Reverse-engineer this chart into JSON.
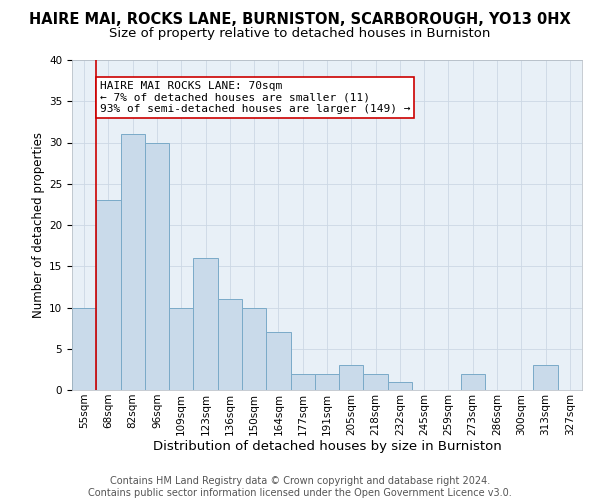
{
  "title": "HAIRE MAI, ROCKS LANE, BURNISTON, SCARBOROUGH, YO13 0HX",
  "subtitle": "Size of property relative to detached houses in Burniston",
  "xlabel": "Distribution of detached houses by size in Burniston",
  "ylabel": "Number of detached properties",
  "bar_values": [
    10,
    23,
    31,
    30,
    10,
    16,
    11,
    10,
    7,
    2,
    2,
    3,
    2,
    1,
    0,
    0,
    2,
    0,
    0,
    3,
    0
  ],
  "categories": [
    "55sqm",
    "68sqm",
    "82sqm",
    "96sqm",
    "109sqm",
    "123sqm",
    "136sqm",
    "150sqm",
    "164sqm",
    "177sqm",
    "191sqm",
    "205sqm",
    "218sqm",
    "232sqm",
    "245sqm",
    "259sqm",
    "273sqm",
    "286sqm",
    "300sqm",
    "313sqm",
    "327sqm"
  ],
  "bar_color": "#c9daea",
  "bar_edge_color": "#7aaac8",
  "ylim": [
    0,
    40
  ],
  "yticks": [
    0,
    5,
    10,
    15,
    20,
    25,
    30,
    35,
    40
  ],
  "vline_color": "#cc0000",
  "vline_position": 1,
  "annotation_text": "HAIRE MAI ROCKS LANE: 70sqm\n← 7% of detached houses are smaller (11)\n93% of semi-detached houses are larger (149) →",
  "annotation_box_color": "#ffffff",
  "annotation_box_edgecolor": "#cc0000",
  "footer_line1": "Contains HM Land Registry data © Crown copyright and database right 2024.",
  "footer_line2": "Contains public sector information licensed under the Open Government Licence v3.0.",
  "title_fontsize": 10.5,
  "subtitle_fontsize": 9.5,
  "ylabel_fontsize": 8.5,
  "xlabel_fontsize": 9.5,
  "tick_fontsize": 7.5,
  "annotation_fontsize": 8,
  "footer_fontsize": 7,
  "grid_color": "#ccd8e4",
  "background_color": "#e8f0f7"
}
